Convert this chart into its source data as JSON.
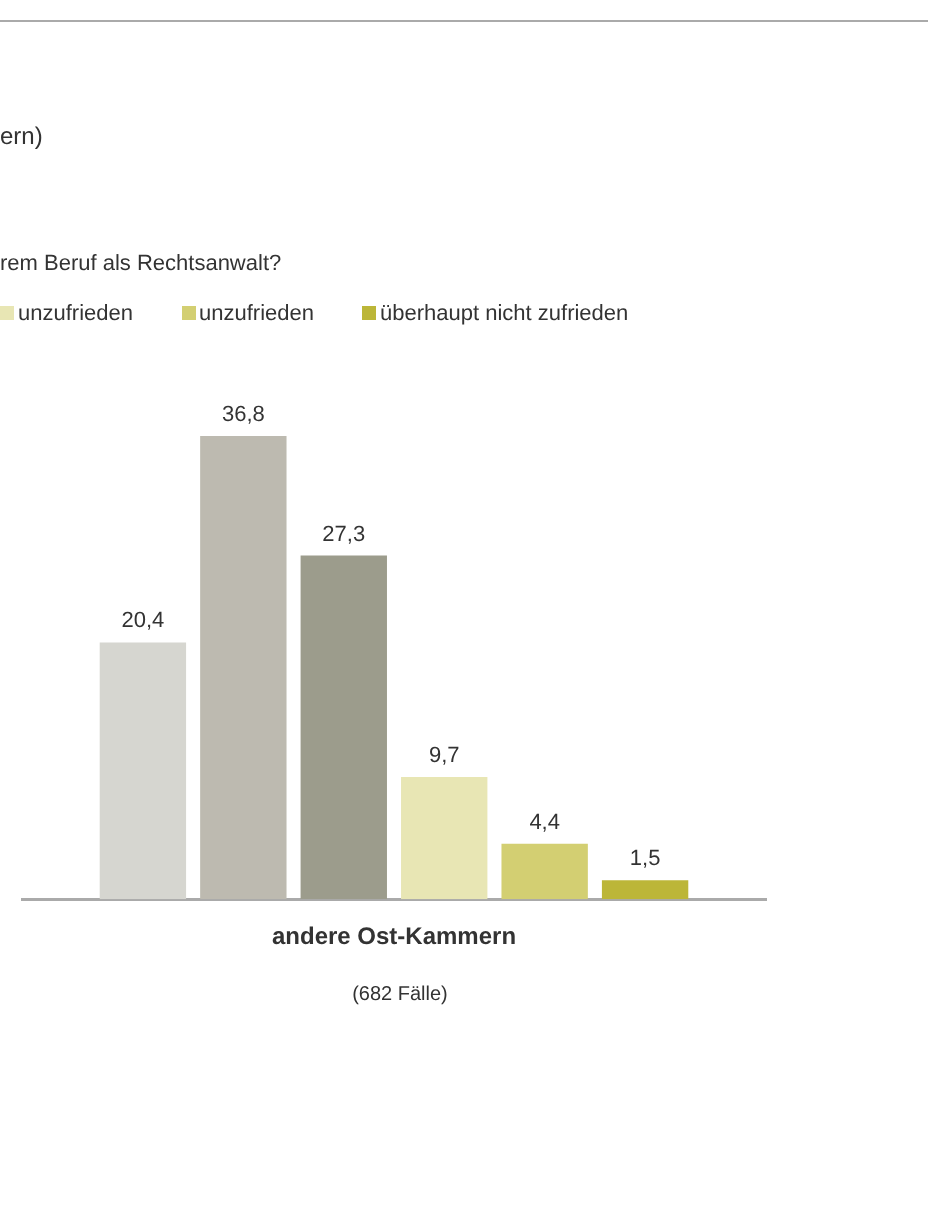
{
  "chart_data": {
    "type": "bar",
    "title": "ern)",
    "subtitle": "rem Beruf als Rechtsanwalt?",
    "xlabel": "andere Ost-Kammern",
    "annotations": [
      "(682 Fälle)"
    ],
    "categories": [
      null
    ],
    "legend": "top left",
    "series": [
      {
        "color": "#d6d6d0",
        "values": [
          20.4
        ],
        "value_labels": [
          "20,4"
        ]
      },
      {
        "color": "#bdbab0",
        "values": [
          36.8
        ],
        "value_labels": [
          "36,8"
        ]
      },
      {
        "color": "#9c9c8c",
        "values": [
          27.3
        ],
        "value_labels": [
          "27,3"
        ]
      },
      {
        "name": "unzufrieden",
        "color": "#e8e6b4",
        "values": [
          9.7
        ],
        "value_labels": [
          "9,7"
        ]
      },
      {
        "name": "unzufrieden",
        "color": "#d3cf72",
        "values": [
          4.4
        ],
        "value_labels": [
          "4,4"
        ]
      },
      {
        "name": "überhaupt nicht zufrieden",
        "color": "#bcb638",
        "values": [
          1.5
        ],
        "value_labels": [
          "1,5"
        ]
      }
    ]
  }
}
